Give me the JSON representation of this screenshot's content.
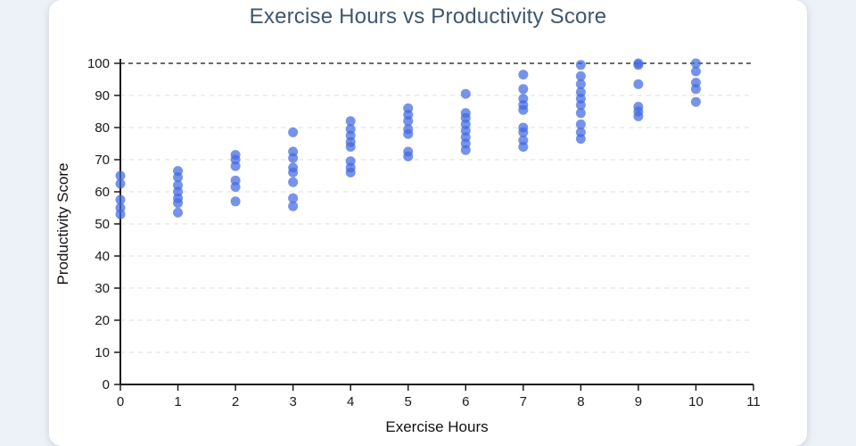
{
  "page": {
    "title": "Exercise Hours vs Productivity Score"
  },
  "colors": {
    "page_background": "#edf1f8",
    "card_background": "#ffffff",
    "title_text": "#3e566f",
    "marker": "#4169e1",
    "gridline": "#dedede",
    "reference_line": "#111111",
    "axis": "#1a1a1a"
  },
  "chart_data": {
    "type": "scatter",
    "title": "Exercise Hours vs Productivity Score",
    "xlabel": "Exercise Hours",
    "ylabel": "Productivity Score",
    "xlim": [
      0,
      11
    ],
    "ylim": [
      0,
      100
    ],
    "xticks": [
      0,
      1,
      2,
      3,
      4,
      5,
      6,
      7,
      8,
      9,
      10,
      11
    ],
    "yticks": [
      0,
      10,
      20,
      30,
      40,
      50,
      60,
      70,
      80,
      90,
      100
    ],
    "grid": "horizontal-dashed",
    "legend": "none",
    "reference_line": {
      "y": 100,
      "style": "dashed",
      "color": "#111111"
    },
    "marker_color": "#4169e1",
    "marker_opacity": 0.72,
    "points": [
      {
        "x": 0,
        "ys": [
          65,
          62.5,
          57.5,
          55,
          53
        ]
      },
      {
        "x": 1,
        "ys": [
          66.5,
          64.5,
          62,
          60,
          58,
          56.5,
          53.5
        ]
      },
      {
        "x": 2,
        "ys": [
          71.5,
          70,
          68,
          63.5,
          61.5,
          57
        ]
      },
      {
        "x": 3,
        "ys": [
          78.5,
          72.5,
          70.5,
          67.5,
          66,
          63,
          58,
          55.5
        ]
      },
      {
        "x": 4,
        "ys": [
          82,
          79.5,
          77.5,
          75.5,
          74,
          69.5,
          67.5,
          66
        ]
      },
      {
        "x": 5,
        "ys": [
          86,
          84,
          82,
          79.5,
          78,
          72.5,
          71
        ]
      },
      {
        "x": 6,
        "ys": [
          90.5,
          84.5,
          83,
          81,
          79,
          77,
          75,
          73
        ]
      },
      {
        "x": 7,
        "ys": [
          96.5,
          92,
          89,
          87,
          85.5,
          80,
          78.5,
          76,
          74
        ]
      },
      {
        "x": 8,
        "ys": [
          99.5,
          96,
          93.5,
          91,
          89,
          87,
          84.5,
          81,
          78.5,
          76.5
        ]
      },
      {
        "x": 9,
        "ys": [
          100,
          99.5,
          93.5,
          86.5,
          85,
          83.5
        ]
      },
      {
        "x": 10,
        "ys": [
          100,
          97.5,
          94,
          92,
          88
        ]
      }
    ]
  }
}
